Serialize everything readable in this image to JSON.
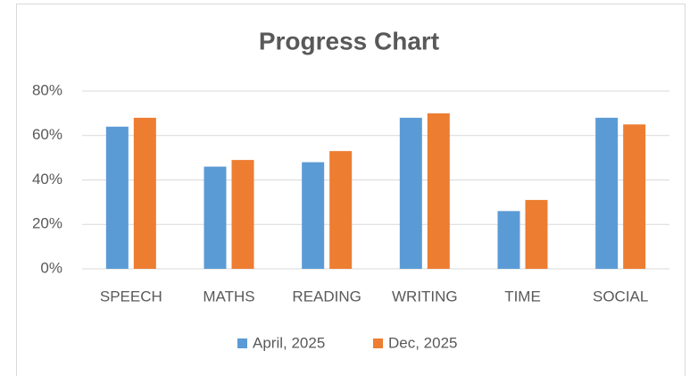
{
  "chart_data": {
    "type": "bar",
    "title": "Progress Chart",
    "categories": [
      "SPEECH",
      "MATHS",
      "READING",
      "WRITING",
      "TIME",
      "SOCIAL"
    ],
    "series": [
      {
        "name": "April, 2025",
        "color": "#5b9bd5",
        "values": [
          64,
          46,
          48,
          68,
          26,
          68
        ]
      },
      {
        "name": "Dec, 2025",
        "color": "#ed7d31",
        "values": [
          68,
          49,
          53,
          70,
          31,
          65
        ]
      }
    ],
    "ylim": [
      0,
      80
    ],
    "yticks": [
      {
        "value": 0,
        "label": "0%"
      },
      {
        "value": 20,
        "label": "20%"
      },
      {
        "value": 40,
        "label": "40%"
      },
      {
        "value": 60,
        "label": "60%"
      },
      {
        "value": 80,
        "label": "80%"
      }
    ],
    "grid": true,
    "legend": "bottom"
  }
}
